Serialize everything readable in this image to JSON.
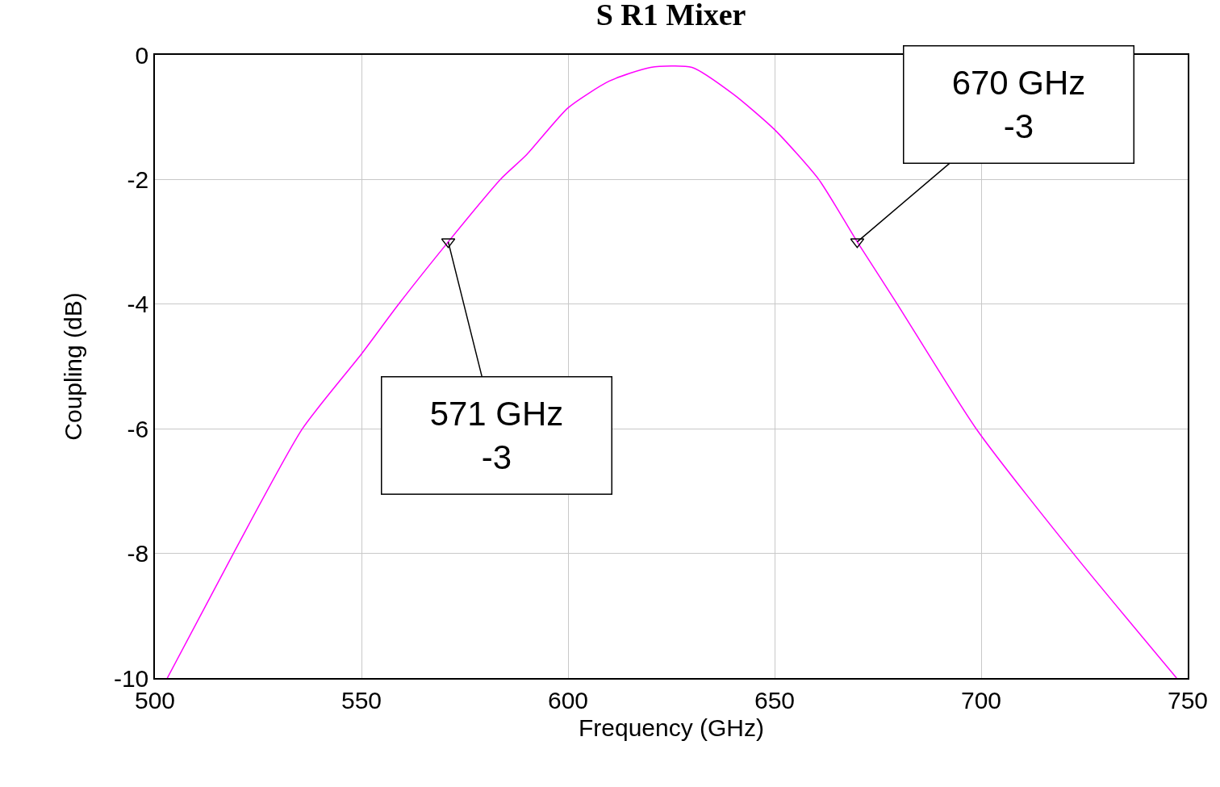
{
  "chart_data": {
    "type": "line",
    "title": "S R1 Mixer",
    "xlabel": "Frequency (GHz)",
    "ylabel": "Coupling (dB)",
    "series": [
      {
        "color": "#ff00ff",
        "marker": "none",
        "x": [
          503,
          519,
          535.7,
          550,
          559,
          571,
          583.6,
          590,
          600,
          610,
          620,
          630,
          640,
          650,
          660.7,
          670,
          679.7,
          698.8,
          722.3,
          747.3
        ],
        "values": [
          -10,
          -8,
          -6,
          -4.8,
          -4,
          -3,
          -2,
          -1.6,
          -0.85,
          -0.42,
          -0.2,
          -0.2,
          -0.63,
          -1.2,
          -2,
          -3,
          -4,
          -6,
          -8,
          -10
        ]
      },
      {
        "type": "scatter",
        "color": "#000000",
        "marker": "triangle",
        "x": [
          571,
          670
        ],
        "values": [
          -3,
          -3
        ]
      }
    ],
    "xlim": [
      500,
      750
    ],
    "xticks": [
      500,
      550,
      600,
      650,
      700,
      750
    ],
    "ylim": [
      -10,
      0
    ],
    "yticks": [
      -10,
      -8,
      -6,
      -4,
      -2,
      0
    ],
    "grid": true,
    "annotations": [
      {
        "text": "571 GHz\n-3",
        "x": 571,
        "y": -3
      },
      {
        "text": "670 GHz\n-3",
        "x": 670,
        "y": -3
      }
    ]
  }
}
